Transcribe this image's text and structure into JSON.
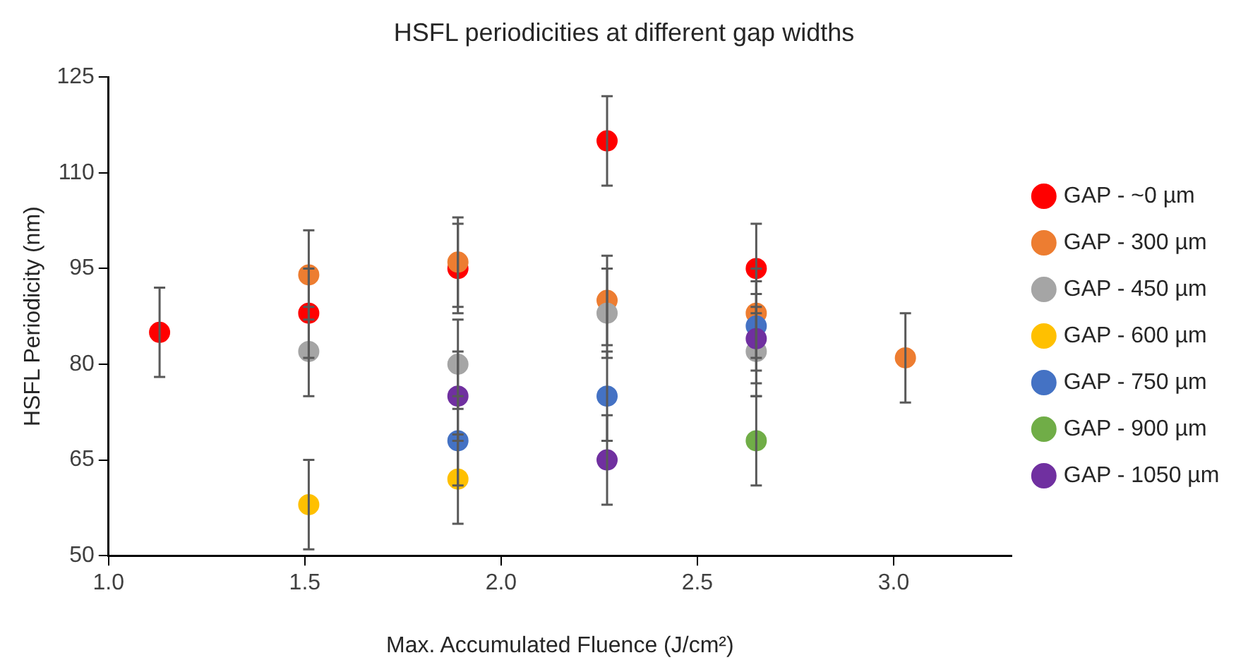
{
  "chart_data": {
    "type": "scatter",
    "title": "HSFL periodicities at different gap widths",
    "xlabel": "Max. Accumulated Fluence (J/cm²)",
    "ylabel": "HSFL Periodicity (nm)",
    "xlim": [
      1.0,
      3.3
    ],
    "xticks": [
      {
        "value": 1.0,
        "label": "1.0"
      },
      {
        "value": 1.5,
        "label": "1.5"
      },
      {
        "value": 2.0,
        "label": "2.0"
      },
      {
        "value": 2.5,
        "label": "2.5"
      },
      {
        "value": 3.0,
        "label": "3.0"
      }
    ],
    "ylim": [
      50,
      125
    ],
    "yticks": [
      50,
      65,
      80,
      95,
      110,
      125
    ],
    "grid": false,
    "legend": "right",
    "marker": "circle",
    "series": [
      {
        "name": "GAP - ~0 µm",
        "color": "#ff0000",
        "x": [
          1.13,
          1.51,
          1.89,
          2.27,
          2.65
        ],
        "values": [
          85,
          88,
          95,
          115,
          95
        ],
        "errors": [
          7,
          7,
          7,
          7,
          7
        ]
      },
      {
        "name": "GAP - 300 µm",
        "color": "#ed7d31",
        "x": [
          1.51,
          1.89,
          2.27,
          2.65,
          3.03
        ],
        "values": [
          94,
          96,
          90,
          88,
          81
        ],
        "errors": [
          7,
          7,
          7,
          7,
          7
        ]
      },
      {
        "name": "GAP - 450 µm",
        "color": "#a5a5a5",
        "x": [
          1.51,
          1.89,
          2.27,
          2.65
        ],
        "values": [
          82,
          80,
          88,
          82
        ],
        "errors": [
          7,
          7,
          7,
          7
        ]
      },
      {
        "name": "GAP - 600 µm",
        "color": "#ffc000",
        "x": [
          1.51,
          1.89
        ],
        "values": [
          58,
          62
        ],
        "errors": [
          7,
          7
        ]
      },
      {
        "name": "GAP - 750 µm",
        "color": "#4472c4",
        "x": [
          1.89,
          2.27,
          2.65
        ],
        "values": [
          68,
          75,
          86
        ],
        "errors": [
          7,
          7,
          7
        ]
      },
      {
        "name": "GAP - 900 µm",
        "color": "#70ad47",
        "x": [
          2.65
        ],
        "values": [
          68
        ],
        "errors": [
          7
        ]
      },
      {
        "name": "GAP - 1050 µm",
        "color": "#7030a0",
        "x": [
          1.89,
          2.27,
          2.65
        ],
        "values": [
          75,
          65,
          84
        ],
        "errors": [
          7,
          7,
          7
        ]
      }
    ]
  }
}
